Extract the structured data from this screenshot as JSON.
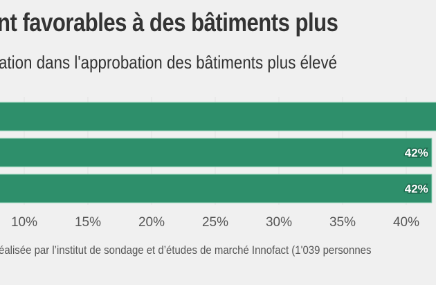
{
  "header": {
    "title": "nt favorables à des bâtiments plus",
    "subtitle": "ation dans l'approbation des bâtiments plus élevé"
  },
  "footer": {
    "source": "éalisée par l’institut de sondage et d’études de marché Innofact (1'039 personnes"
  },
  "colors": {
    "bar": "#2e8f6b",
    "bar_edge": "#7fc7aa",
    "label_halo": "#1d6b4e",
    "gridline": "#e2e2e2",
    "background": "#f0f0f0"
  },
  "chart_data": {
    "type": "bar",
    "orientation": "horizontal",
    "title": "nt favorables à des bâtiments plus",
    "subtitle": "ation dans l'approbation des bâtiments plus élevé",
    "categories": [
      "",
      "",
      ""
    ],
    "values": [
      44,
      42,
      42
    ],
    "data_labels": [
      "",
      "42%",
      "42%"
    ],
    "x_ticks": [
      10,
      15,
      20,
      25,
      30,
      35,
      40
    ],
    "x_tick_labels": [
      "10%",
      "15%",
      "20%",
      "25%",
      "30%",
      "35%",
      "40%"
    ],
    "xlabel": "",
    "ylabel": "",
    "xlim": [
      8.1,
      42.4
    ],
    "grid": true,
    "legend": "none"
  }
}
